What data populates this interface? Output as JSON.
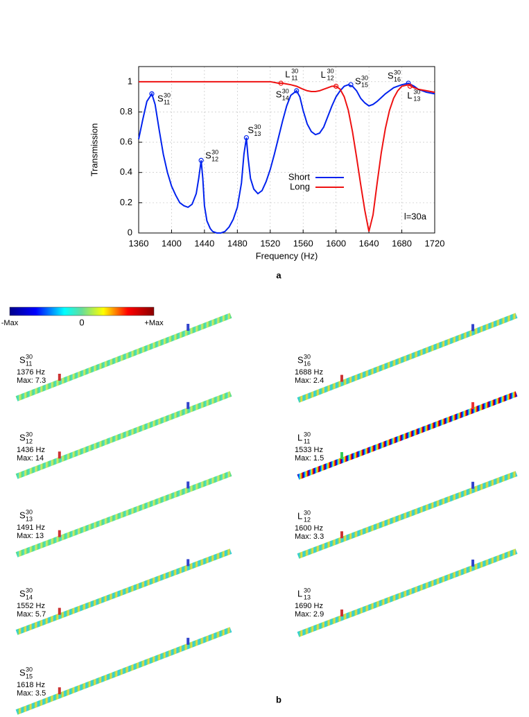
{
  "chart_data": {
    "type": "line",
    "xlabel": "Frequency (Hz)",
    "ylabel": "Transmission",
    "annotation": "l=30a",
    "xlim": [
      1360,
      1720
    ],
    "xticks": [
      1360,
      1400,
      1440,
      1480,
      1520,
      1560,
      1600,
      1640,
      1680,
      1720
    ],
    "ylim": [
      0,
      1.1
    ],
    "yticks": [
      0,
      0.2,
      0.4,
      0.6,
      0.8,
      1
    ],
    "grid": true,
    "legend": "right",
    "x": [
      1360,
      1365,
      1370,
      1376,
      1380,
      1385,
      1390,
      1395,
      1400,
      1405,
      1410,
      1415,
      1420,
      1425,
      1430,
      1433,
      1436,
      1438,
      1440,
      1443,
      1447,
      1450,
      1455,
      1460,
      1465,
      1470,
      1475,
      1480,
      1485,
      1488,
      1491,
      1493,
      1496,
      1500,
      1505,
      1510,
      1515,
      1520,
      1525,
      1530,
      1535,
      1540,
      1545,
      1552,
      1556,
      1560,
      1565,
      1570,
      1575,
      1580,
      1585,
      1590,
      1595,
      1600,
      1605,
      1610,
      1615,
      1620,
      1625,
      1630,
      1635,
      1640,
      1645,
      1650,
      1655,
      1660,
      1665,
      1670,
      1675,
      1680,
      1688,
      1695,
      1700,
      1710,
      1720
    ],
    "series": [
      {
        "name": "Short",
        "color": "#0022ee",
        "values": [
          0.62,
          0.75,
          0.87,
          0.92,
          0.85,
          0.68,
          0.52,
          0.4,
          0.31,
          0.25,
          0.2,
          0.18,
          0.17,
          0.19,
          0.26,
          0.36,
          0.48,
          0.36,
          0.18,
          0.08,
          0.03,
          0.01,
          0,
          0,
          0.01,
          0.04,
          0.09,
          0.17,
          0.33,
          0.52,
          0.63,
          0.5,
          0.36,
          0.29,
          0.26,
          0.28,
          0.34,
          0.42,
          0.52,
          0.63,
          0.74,
          0.84,
          0.91,
          0.94,
          0.9,
          0.81,
          0.72,
          0.67,
          0.65,
          0.66,
          0.7,
          0.77,
          0.84,
          0.9,
          0.94,
          0.97,
          0.98,
          0.97,
          0.94,
          0.89,
          0.86,
          0.84,
          0.85,
          0.87,
          0.895,
          0.92,
          0.94,
          0.96,
          0.97,
          0.98,
          0.99,
          0.97,
          0.95,
          0.93,
          0.92
        ],
        "markers": [
          {
            "letter": "S",
            "sup": "30",
            "sub": "11",
            "x": 1376,
            "y": 0.92
          },
          {
            "letter": "S",
            "sup": "30",
            "sub": "12",
            "x": 1436,
            "y": 0.48
          },
          {
            "letter": "S",
            "sup": "30",
            "sub": "13",
            "x": 1491,
            "y": 0.63
          },
          {
            "letter": "S",
            "sup": "30",
            "sub": "14",
            "x": 1552,
            "y": 0.94
          },
          {
            "letter": "S",
            "sup": "30",
            "sub": "15",
            "x": 1618,
            "y": 0.98
          },
          {
            "letter": "S",
            "sup": "30",
            "sub": "16",
            "x": 1688,
            "y": 0.99
          }
        ]
      },
      {
        "name": "Long",
        "color": "#ee1111",
        "values": [
          1,
          1,
          1,
          1,
          1,
          1,
          1,
          1,
          1,
          1,
          1,
          1,
          1,
          1,
          1,
          1,
          1,
          1,
          1,
          1,
          1,
          1,
          1,
          1,
          1,
          1,
          1,
          1,
          1,
          1,
          1,
          1,
          1,
          1,
          1,
          1,
          1,
          1,
          0.995,
          0.99,
          0.99,
          0.985,
          0.98,
          0.97,
          0.96,
          0.95,
          0.94,
          0.935,
          0.935,
          0.94,
          0.95,
          0.96,
          0.97,
          0.97,
          0.95,
          0.9,
          0.81,
          0.67,
          0.5,
          0.32,
          0.15,
          0.01,
          0.12,
          0.33,
          0.53,
          0.69,
          0.81,
          0.89,
          0.94,
          0.97,
          0.98,
          0.96,
          0.95,
          0.94,
          0.93
        ],
        "markers": [
          {
            "letter": "L",
            "sup": "30",
            "sub": "11",
            "x": 1533,
            "y": 0.99
          },
          {
            "letter": "L",
            "sup": "30",
            "sub": "12",
            "x": 1600,
            "y": 0.97
          },
          {
            "letter": "L",
            "sup": "30",
            "sub": "13",
            "x": 1690,
            "y": 0.97
          }
        ]
      }
    ]
  },
  "panel_a": {
    "label": "a"
  },
  "panel_b": {
    "label": "b",
    "colorbar": {
      "min_label": "-Max",
      "mid_label": "0",
      "max_label": "+Max"
    },
    "modes": [
      {
        "letter": "S",
        "sup": "30",
        "sub": "11",
        "frequency": "1376 Hz",
        "max": "Max: 7.3"
      },
      {
        "letter": "S",
        "sup": "30",
        "sub": "12",
        "frequency": "1436 Hz",
        "max": "Max: 14"
      },
      {
        "letter": "S",
        "sup": "30",
        "sub": "13",
        "frequency": "1491 Hz",
        "max": "Max: 13"
      },
      {
        "letter": "S",
        "sup": "30",
        "sub": "14",
        "frequency": "1552 Hz",
        "max": "Max: 5.7"
      },
      {
        "letter": "S",
        "sup": "30",
        "sub": "15",
        "frequency": "1618 Hz",
        "max": "Max: 3.5"
      },
      {
        "letter": "S",
        "sup": "30",
        "sub": "16",
        "frequency": "1688 Hz",
        "max": "Max: 2.4"
      },
      {
        "letter": "L",
        "sup": "30",
        "sub": "11",
        "frequency": "1533 Hz",
        "max": "Max: 1.5"
      },
      {
        "letter": "L",
        "sup": "30",
        "sub": "12",
        "frequency": "1600 Hz",
        "max": "Max: 3.3"
      },
      {
        "letter": "L",
        "sup": "30",
        "sub": "13",
        "frequency": "1690 Hz",
        "max": "Max: 2.9"
      }
    ]
  }
}
